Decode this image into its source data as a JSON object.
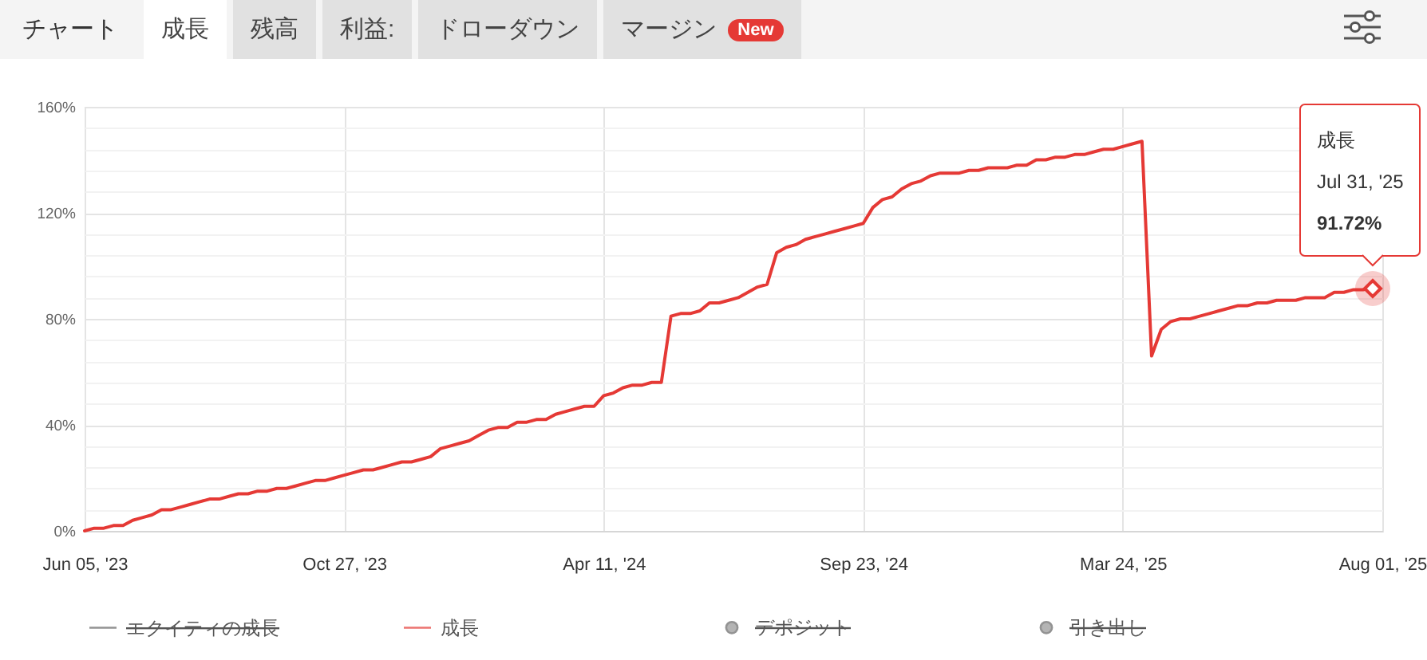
{
  "chart_data": {
    "type": "line",
    "title": "チャート",
    "annotations": [
      "成長",
      "残高",
      "利益:",
      "ドローダウン",
      "マージン",
      "New",
      {
        "text": "成長\nJul 31, '25\n91.72%",
        "y": 91.72
      }
    ],
    "categories": [
      "Jun 05, '23",
      null,
      null,
      null,
      null,
      null,
      null,
      null,
      null,
      null,
      null,
      null,
      null,
      null,
      null,
      null,
      null,
      null,
      null,
      null,
      null,
      null,
      null,
      null,
      null,
      null,
      null,
      "Oct 27, '23",
      null,
      null,
      null,
      null,
      null,
      null,
      null,
      null,
      null,
      null,
      null,
      null,
      null,
      null,
      null,
      null,
      null,
      null,
      null,
      null,
      null,
      null,
      null,
      null,
      null,
      null,
      "Apr 11, '24",
      null,
      null,
      null,
      null,
      null,
      null,
      null,
      null,
      null,
      null,
      null,
      null,
      null,
      null,
      null,
      null,
      null,
      null,
      null,
      null,
      null,
      null,
      null,
      null,
      null,
      null,
      "Sep 23, '24",
      null,
      null,
      null,
      null,
      null,
      null,
      null,
      null,
      null,
      null,
      null,
      null,
      null,
      null,
      null,
      null,
      null,
      null,
      null,
      null,
      null,
      null,
      null,
      null,
      null,
      null,
      "Mar 24, '25",
      null,
      null,
      null,
      null,
      null,
      null,
      null,
      null,
      null,
      null,
      null,
      null,
      null,
      null,
      null,
      null,
      null,
      null,
      null,
      null,
      null,
      null,
      null,
      null,
      null,
      null,
      "Aug 01, '25"
    ],
    "ylim": [
      0,
      160
    ],
    "yticks": [
      {
        "value": 0,
        "label": "0%"
      },
      {
        "value": 8,
        "label": null
      },
      {
        "value": 16,
        "label": null
      },
      {
        "value": 24,
        "label": null
      },
      {
        "value": 32,
        "label": null
      },
      {
        "value": 40,
        "label": "40%"
      },
      {
        "value": 48,
        "label": null
      },
      {
        "value": 56,
        "label": null
      },
      {
        "value": 64,
        "label": null
      },
      {
        "value": 72,
        "label": null
      },
      {
        "value": 80,
        "label": "80%"
      },
      {
        "value": 88,
        "label": null
      },
      {
        "value": 96,
        "label": null
      },
      {
        "value": 104,
        "label": null
      },
      {
        "value": 112,
        "label": null
      },
      {
        "value": 120,
        "label": "120%"
      },
      {
        "value": 128,
        "label": null
      },
      {
        "value": 136,
        "label": null
      },
      {
        "value": 144,
        "label": null
      },
      {
        "value": 152,
        "label": null
      },
      {
        "value": 160,
        "label": "160%"
      }
    ],
    "grid": true,
    "legend": "bottom",
    "line_style": "solid",
    "series": [
      {
        "name": "エクイティの成長",
        "color": "#666666",
        "values": [
          null,
          null,
          null,
          null,
          null,
          null,
          null,
          null,
          null,
          null,
          null,
          null,
          null,
          null,
          null,
          null,
          null,
          null,
          null,
          null,
          null,
          null,
          null,
          null,
          null,
          null,
          null,
          null,
          null,
          null,
          null,
          null,
          null,
          null,
          null,
          null,
          null,
          null,
          null,
          null,
          null,
          null,
          null,
          null,
          null,
          null,
          null,
          null,
          null,
          null,
          null,
          null,
          null,
          null,
          null,
          null,
          null,
          null,
          null,
          null,
          null,
          null,
          null,
          null,
          null,
          null,
          null,
          null,
          null,
          null,
          null,
          null,
          null,
          null,
          null,
          null,
          null,
          null,
          null,
          null,
          null,
          null,
          null,
          null,
          null,
          null,
          null,
          null,
          null,
          null,
          null,
          null,
          null,
          null,
          null,
          null,
          null,
          null,
          null,
          null,
          null,
          null,
          null,
          null,
          null,
          null,
          null,
          null,
          null,
          null,
          null,
          null,
          null,
          null,
          null,
          null,
          null,
          null,
          null,
          null,
          null,
          null,
          null,
          null,
          null,
          null,
          null,
          null,
          null,
          null,
          null,
          null,
          null,
          null,
          null,
          null
        ]
      },
      {
        "name": "成長",
        "color": "#e53935",
        "values": [
          0,
          1,
          1,
          2,
          2,
          4,
          5,
          6,
          8,
          8,
          9,
          10,
          11,
          12,
          12,
          13,
          14,
          14,
          15,
          15,
          16,
          16,
          17,
          18,
          19,
          19,
          20,
          21,
          22,
          23,
          23,
          24,
          25,
          26,
          26,
          27,
          28,
          31,
          32,
          33,
          34,
          36,
          38,
          39,
          39,
          41,
          41,
          42,
          42,
          44,
          45,
          46,
          47,
          47,
          51,
          52,
          54,
          55,
          55,
          56,
          56,
          81,
          82,
          82,
          83,
          86,
          86,
          87,
          88,
          90,
          92,
          93,
          105,
          107,
          108,
          110,
          111,
          112,
          113,
          114,
          115,
          116,
          122,
          125,
          126,
          129,
          131,
          132,
          134,
          135,
          135,
          135,
          136,
          136,
          137,
          137,
          137,
          138,
          138,
          140,
          140,
          141,
          141,
          142,
          142,
          143,
          144,
          144,
          145,
          146,
          147,
          66,
          76,
          79,
          80,
          80,
          81,
          82,
          83,
          84,
          85,
          85,
          86,
          86,
          87,
          87,
          87,
          88,
          88,
          88,
          90,
          90,
          91,
          91,
          91.72,
          null
        ]
      },
      {
        "name": "デポジット",
        "type": "scatter",
        "color": "#666666",
        "values": [
          null,
          null,
          null,
          null,
          null,
          null,
          null,
          null,
          null,
          null,
          null,
          null,
          null,
          null,
          null,
          null,
          null,
          null,
          null,
          null,
          null,
          null,
          null,
          null,
          null,
          null,
          null,
          null,
          null,
          null,
          null,
          null,
          null,
          null,
          null,
          null,
          null,
          null,
          null,
          null,
          null,
          null,
          null,
          null,
          null,
          null,
          null,
          null,
          null,
          null,
          null,
          null,
          null,
          null,
          null,
          null,
          null,
          null,
          null,
          null,
          null,
          null,
          null,
          null,
          null,
          null,
          null,
          null,
          null,
          null,
          null,
          null,
          null,
          null,
          null,
          null,
          null,
          null,
          null,
          null,
          null,
          null,
          null,
          null,
          null,
          null,
          null,
          null,
          null,
          null,
          null,
          null,
          null,
          null,
          null,
          null,
          null,
          null,
          null,
          null,
          null,
          null,
          null,
          null,
          null,
          null,
          null,
          null,
          null,
          null,
          null,
          null,
          null,
          null,
          null,
          null,
          null,
          null,
          null,
          null,
          null,
          null,
          null,
          null,
          null,
          null,
          null,
          null,
          null,
          null,
          null,
          null,
          null,
          null,
          null,
          null
        ]
      },
      {
        "name": "引き出し",
        "type": "scatter",
        "color": "#666666",
        "values": [
          null,
          null,
          null,
          null,
          null,
          null,
          null,
          null,
          null,
          null,
          null,
          null,
          null,
          null,
          null,
          null,
          null,
          null,
          null,
          null,
          null,
          null,
          null,
          null,
          null,
          null,
          null,
          null,
          null,
          null,
          null,
          null,
          null,
          null,
          null,
          null,
          null,
          null,
          null,
          null,
          null,
          null,
          null,
          null,
          null,
          null,
          null,
          null,
          null,
          null,
          null,
          null,
          null,
          null,
          null,
          null,
          null,
          null,
          null,
          null,
          null,
          null,
          null,
          null,
          null,
          null,
          null,
          null,
          null,
          null,
          null,
          null,
          null,
          null,
          null,
          null,
          null,
          null,
          null,
          null,
          null,
          null,
          null,
          null,
          null,
          null,
          null,
          null,
          null,
          null,
          null,
          null,
          null,
          null,
          null,
          null,
          null,
          null,
          null,
          null,
          null,
          null,
          null,
          null,
          null,
          null,
          null,
          null,
          null,
          null,
          null,
          null,
          null,
          null,
          null,
          null,
          null,
          null,
          null,
          null,
          null,
          null,
          null,
          null,
          null,
          null,
          null,
          null,
          null,
          null,
          null,
          null,
          null,
          null,
          null,
          null
        ]
      }
    ]
  }
}
